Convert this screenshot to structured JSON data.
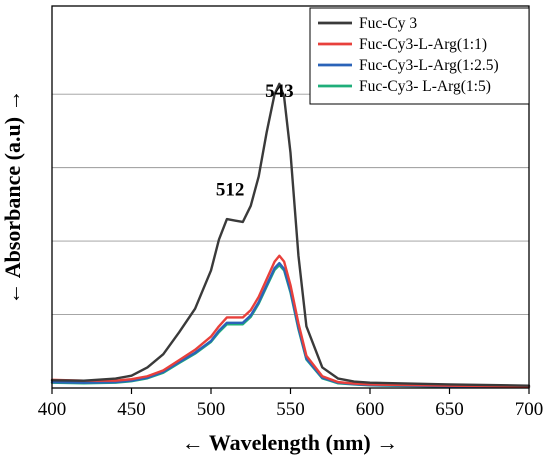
{
  "chart_data": {
    "type": "line",
    "xlabel": "← Wavelength (nm) →",
    "ylabel": "← Absorbance (a.u) →",
    "xlim": [
      400,
      700
    ],
    "ylim": [
      0,
      1
    ],
    "xticks": [
      "400",
      "450",
      "500",
      "550",
      "600",
      "650",
      "700"
    ],
    "grid": "horizontal",
    "legend_position": "top-right",
    "annotations": [
      {
        "text": "512",
        "x": 512,
        "y": 0.655
      },
      {
        "text": "543",
        "x": 543,
        "y": 0.99
      }
    ],
    "series": [
      {
        "name": "Fuc-Cy 3",
        "color": "#3a3a3a",
        "x": [
          400,
          420,
          440,
          450,
          460,
          470,
          480,
          490,
          500,
          505,
          510,
          515,
          520,
          525,
          530,
          535,
          540,
          543,
          546,
          550,
          555,
          560,
          570,
          580,
          590,
          600,
          650,
          700
        ],
        "y": [
          0.026,
          0.025,
          0.032,
          0.042,
          0.07,
          0.115,
          0.19,
          0.27,
          0.4,
          0.505,
          0.575,
          0.57,
          0.565,
          0.62,
          0.72,
          0.87,
          1.0,
          1.035,
          0.99,
          0.8,
          0.45,
          0.21,
          0.07,
          0.032,
          0.022,
          0.018,
          0.012,
          0.008
        ]
      },
      {
        "name": "Fuc-Cy3-L-Arg(1:1)",
        "color": "#e8403b",
        "x": [
          400,
          420,
          440,
          450,
          460,
          470,
          480,
          490,
          500,
          505,
          510,
          515,
          520,
          525,
          530,
          535,
          540,
          543,
          546,
          550,
          555,
          560,
          570,
          580,
          590,
          600,
          650,
          700
        ],
        "y": [
          0.028,
          0.025,
          0.025,
          0.03,
          0.04,
          0.06,
          0.095,
          0.13,
          0.175,
          0.21,
          0.24,
          0.24,
          0.24,
          0.265,
          0.31,
          0.37,
          0.43,
          0.45,
          0.43,
          0.35,
          0.22,
          0.11,
          0.04,
          0.02,
          0.015,
          0.012,
          0.008,
          0.005
        ]
      },
      {
        "name": "Fuc-Cy3-L-Arg(1:2.5)",
        "color": "#2a63b8",
        "x": [
          400,
          420,
          440,
          450,
          460,
          470,
          480,
          490,
          500,
          505,
          510,
          515,
          520,
          525,
          530,
          535,
          540,
          543,
          546,
          550,
          555,
          560,
          570,
          580,
          590,
          600,
          650,
          700
        ],
        "y": [
          0.02,
          0.018,
          0.02,
          0.025,
          0.035,
          0.055,
          0.088,
          0.12,
          0.16,
          0.195,
          0.222,
          0.222,
          0.222,
          0.247,
          0.292,
          0.35,
          0.408,
          0.425,
          0.405,
          0.33,
          0.205,
          0.1,
          0.035,
          0.018,
          0.013,
          0.01,
          0.006,
          0.004
        ]
      },
      {
        "name": "Fuc-Cy3- L-Arg(1:5)",
        "color": "#1fae7a",
        "x": [
          400,
          420,
          440,
          450,
          460,
          470,
          480,
          490,
          500,
          505,
          510,
          515,
          520,
          525,
          530,
          535,
          540,
          543,
          546,
          550,
          555,
          560,
          570,
          580,
          590,
          600,
          650,
          700
        ],
        "y": [
          0.018,
          0.016,
          0.018,
          0.023,
          0.033,
          0.052,
          0.085,
          0.117,
          0.157,
          0.19,
          0.217,
          0.217,
          0.217,
          0.242,
          0.287,
          0.345,
          0.402,
          0.418,
          0.4,
          0.325,
          0.2,
          0.097,
          0.033,
          0.016,
          0.012,
          0.009,
          0.005,
          0.003
        ]
      }
    ]
  }
}
